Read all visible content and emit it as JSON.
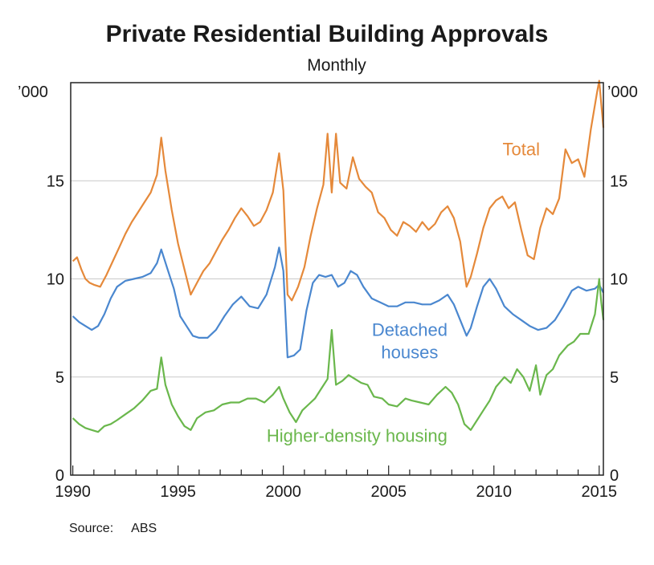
{
  "title": "Private Residential Building Approvals",
  "subtitle": "Monthly",
  "unit_left": "’000",
  "unit_right": "’000",
  "source_label": "Source:",
  "source_value": "ABS",
  "chart_data": {
    "type": "line",
    "title": "Private Residential Building Approvals",
    "subtitle": "Monthly",
    "xlim": [
      1989.9,
      2015.2
    ],
    "ylim": [
      0,
      20
    ],
    "yunit": "’000",
    "x_ticks": [
      1990,
      1995,
      2000,
      2005,
      2010,
      2015
    ],
    "x_tick_labels": [
      "1990",
      "1995",
      "2000",
      "2005",
      "2010",
      "2015"
    ],
    "y_ticks": [
      0,
      5,
      10,
      15
    ],
    "y_tick_labels": [
      "0",
      "5",
      "10",
      "15"
    ],
    "grid": true,
    "series": [
      {
        "name": "Total",
        "color": "#e5893a",
        "label_x": 2011.3,
        "label_y": 16.3,
        "points": [
          [
            1990.0,
            10.9
          ],
          [
            1990.2,
            11.1
          ],
          [
            1990.4,
            10.5
          ],
          [
            1990.6,
            10.0
          ],
          [
            1990.8,
            9.8
          ],
          [
            1991.0,
            9.7
          ],
          [
            1991.3,
            9.6
          ],
          [
            1991.6,
            10.2
          ],
          [
            1991.9,
            10.9
          ],
          [
            1992.2,
            11.6
          ],
          [
            1992.5,
            12.3
          ],
          [
            1992.8,
            12.9
          ],
          [
            1993.1,
            13.4
          ],
          [
            1993.4,
            13.9
          ],
          [
            1993.7,
            14.4
          ],
          [
            1994.0,
            15.3
          ],
          [
            1994.2,
            17.2
          ],
          [
            1994.4,
            15.5
          ],
          [
            1994.7,
            13.5
          ],
          [
            1995.0,
            11.8
          ],
          [
            1995.3,
            10.5
          ],
          [
            1995.6,
            9.2
          ],
          [
            1995.9,
            9.8
          ],
          [
            1996.2,
            10.4
          ],
          [
            1996.5,
            10.8
          ],
          [
            1996.8,
            11.4
          ],
          [
            1997.1,
            12.0
          ],
          [
            1997.4,
            12.5
          ],
          [
            1997.7,
            13.1
          ],
          [
            1998.0,
            13.6
          ],
          [
            1998.3,
            13.2
          ],
          [
            1998.6,
            12.7
          ],
          [
            1998.9,
            12.9
          ],
          [
            1999.2,
            13.5
          ],
          [
            1999.5,
            14.4
          ],
          [
            1999.8,
            16.4
          ],
          [
            2000.0,
            14.5
          ],
          [
            2000.2,
            9.2
          ],
          [
            2000.4,
            8.9
          ],
          [
            2000.7,
            9.6
          ],
          [
            2001.0,
            10.6
          ],
          [
            2001.3,
            12.2
          ],
          [
            2001.6,
            13.6
          ],
          [
            2001.9,
            14.8
          ],
          [
            2002.1,
            17.4
          ],
          [
            2002.3,
            14.4
          ],
          [
            2002.5,
            17.4
          ],
          [
            2002.7,
            14.9
          ],
          [
            2003.0,
            14.6
          ],
          [
            2003.3,
            16.2
          ],
          [
            2003.6,
            15.1
          ],
          [
            2003.9,
            14.7
          ],
          [
            2004.2,
            14.4
          ],
          [
            2004.5,
            13.4
          ],
          [
            2004.8,
            13.1
          ],
          [
            2005.1,
            12.5
          ],
          [
            2005.4,
            12.2
          ],
          [
            2005.7,
            12.9
          ],
          [
            2006.0,
            12.7
          ],
          [
            2006.3,
            12.4
          ],
          [
            2006.6,
            12.9
          ],
          [
            2006.9,
            12.5
          ],
          [
            2007.2,
            12.8
          ],
          [
            2007.5,
            13.4
          ],
          [
            2007.8,
            13.7
          ],
          [
            2008.1,
            13.1
          ],
          [
            2008.4,
            11.9
          ],
          [
            2008.7,
            9.6
          ],
          [
            2008.9,
            10.1
          ],
          [
            2009.2,
            11.3
          ],
          [
            2009.5,
            12.6
          ],
          [
            2009.8,
            13.6
          ],
          [
            2010.1,
            14.0
          ],
          [
            2010.4,
            14.2
          ],
          [
            2010.7,
            13.6
          ],
          [
            2011.0,
            13.9
          ],
          [
            2011.3,
            12.5
          ],
          [
            2011.6,
            11.2
          ],
          [
            2011.9,
            11.0
          ],
          [
            2012.2,
            12.6
          ],
          [
            2012.5,
            13.6
          ],
          [
            2012.8,
            13.3
          ],
          [
            2013.1,
            14.1
          ],
          [
            2013.4,
            16.6
          ],
          [
            2013.7,
            15.9
          ],
          [
            2014.0,
            16.1
          ],
          [
            2014.3,
            15.2
          ],
          [
            2014.6,
            17.6
          ],
          [
            2014.9,
            19.5
          ],
          [
            2015.0,
            20.1
          ],
          [
            2015.1,
            18.9
          ],
          [
            2015.2,
            17.7
          ]
        ]
      },
      {
        "name": "Detached houses",
        "color": "#4a87cf",
        "label_line1": "Detached",
        "label_line2": "houses",
        "label_x": 2006.0,
        "label_y": 7.1,
        "points": [
          [
            1990.0,
            8.1
          ],
          [
            1990.3,
            7.8
          ],
          [
            1990.6,
            7.6
          ],
          [
            1990.9,
            7.4
          ],
          [
            1991.2,
            7.6
          ],
          [
            1991.5,
            8.2
          ],
          [
            1991.8,
            9.0
          ],
          [
            1992.1,
            9.6
          ],
          [
            1992.5,
            9.9
          ],
          [
            1992.9,
            10.0
          ],
          [
            1993.3,
            10.1
          ],
          [
            1993.7,
            10.3
          ],
          [
            1994.0,
            10.8
          ],
          [
            1994.2,
            11.5
          ],
          [
            1994.5,
            10.5
          ],
          [
            1994.8,
            9.5
          ],
          [
            1995.1,
            8.1
          ],
          [
            1995.4,
            7.6
          ],
          [
            1995.7,
            7.1
          ],
          [
            1996.0,
            7.0
          ],
          [
            1996.4,
            7.0
          ],
          [
            1996.8,
            7.4
          ],
          [
            1997.2,
            8.1
          ],
          [
            1997.6,
            8.7
          ],
          [
            1998.0,
            9.1
          ],
          [
            1998.4,
            8.6
          ],
          [
            1998.8,
            8.5
          ],
          [
            1999.2,
            9.2
          ],
          [
            1999.6,
            10.6
          ],
          [
            1999.8,
            11.6
          ],
          [
            2000.0,
            10.4
          ],
          [
            2000.2,
            6.0
          ],
          [
            2000.5,
            6.1
          ],
          [
            2000.8,
            6.4
          ],
          [
            2001.1,
            8.4
          ],
          [
            2001.4,
            9.8
          ],
          [
            2001.7,
            10.2
          ],
          [
            2002.0,
            10.1
          ],
          [
            2002.3,
            10.2
          ],
          [
            2002.6,
            9.6
          ],
          [
            2002.9,
            9.8
          ],
          [
            2003.2,
            10.4
          ],
          [
            2003.5,
            10.2
          ],
          [
            2003.8,
            9.6
          ],
          [
            2004.2,
            9.0
          ],
          [
            2004.6,
            8.8
          ],
          [
            2005.0,
            8.6
          ],
          [
            2005.4,
            8.6
          ],
          [
            2005.8,
            8.8
          ],
          [
            2006.2,
            8.8
          ],
          [
            2006.6,
            8.7
          ],
          [
            2007.0,
            8.7
          ],
          [
            2007.4,
            8.9
          ],
          [
            2007.8,
            9.2
          ],
          [
            2008.1,
            8.7
          ],
          [
            2008.4,
            7.9
          ],
          [
            2008.7,
            7.1
          ],
          [
            2008.9,
            7.5
          ],
          [
            2009.2,
            8.6
          ],
          [
            2009.5,
            9.6
          ],
          [
            2009.8,
            10.0
          ],
          [
            2010.1,
            9.5
          ],
          [
            2010.5,
            8.6
          ],
          [
            2010.9,
            8.2
          ],
          [
            2011.3,
            7.9
          ],
          [
            2011.7,
            7.6
          ],
          [
            2012.1,
            7.4
          ],
          [
            2012.5,
            7.5
          ],
          [
            2012.9,
            7.9
          ],
          [
            2013.3,
            8.6
          ],
          [
            2013.7,
            9.4
          ],
          [
            2014.0,
            9.6
          ],
          [
            2014.4,
            9.4
          ],
          [
            2014.8,
            9.5
          ],
          [
            2015.0,
            9.7
          ],
          [
            2015.2,
            9.3
          ]
        ]
      },
      {
        "name": "Higher-density housing",
        "color": "#6ab74c",
        "label_x": 2003.5,
        "label_y": 1.7,
        "points": [
          [
            1990.0,
            2.9
          ],
          [
            1990.3,
            2.6
          ],
          [
            1990.6,
            2.4
          ],
          [
            1990.9,
            2.3
          ],
          [
            1991.2,
            2.2
          ],
          [
            1991.5,
            2.5
          ],
          [
            1991.8,
            2.6
          ],
          [
            1992.1,
            2.8
          ],
          [
            1992.5,
            3.1
          ],
          [
            1992.9,
            3.4
          ],
          [
            1993.3,
            3.8
          ],
          [
            1993.7,
            4.3
          ],
          [
            1994.0,
            4.4
          ],
          [
            1994.2,
            6.0
          ],
          [
            1994.4,
            4.6
          ],
          [
            1994.7,
            3.6
          ],
          [
            1995.0,
            3.0
          ],
          [
            1995.3,
            2.5
          ],
          [
            1995.6,
            2.3
          ],
          [
            1995.9,
            2.9
          ],
          [
            1996.3,
            3.2
          ],
          [
            1996.7,
            3.3
          ],
          [
            1997.1,
            3.6
          ],
          [
            1997.5,
            3.7
          ],
          [
            1997.9,
            3.7
          ],
          [
            1998.3,
            3.9
          ],
          [
            1998.7,
            3.9
          ],
          [
            1999.1,
            3.7
          ],
          [
            1999.5,
            4.1
          ],
          [
            1999.8,
            4.5
          ],
          [
            2000.0,
            3.9
          ],
          [
            2000.3,
            3.2
          ],
          [
            2000.6,
            2.7
          ],
          [
            2000.9,
            3.3
          ],
          [
            2001.2,
            3.6
          ],
          [
            2001.5,
            3.9
          ],
          [
            2001.8,
            4.4
          ],
          [
            2002.1,
            4.9
          ],
          [
            2002.3,
            7.4
          ],
          [
            2002.5,
            4.6
          ],
          [
            2002.8,
            4.8
          ],
          [
            2003.1,
            5.1
          ],
          [
            2003.4,
            4.9
          ],
          [
            2003.7,
            4.7
          ],
          [
            2004.0,
            4.6
          ],
          [
            2004.3,
            4.0
          ],
          [
            2004.7,
            3.9
          ],
          [
            2005.0,
            3.6
          ],
          [
            2005.4,
            3.5
          ],
          [
            2005.8,
            3.9
          ],
          [
            2006.1,
            3.8
          ],
          [
            2006.5,
            3.7
          ],
          [
            2006.9,
            3.6
          ],
          [
            2007.3,
            4.1
          ],
          [
            2007.7,
            4.5
          ],
          [
            2008.0,
            4.2
          ],
          [
            2008.3,
            3.6
          ],
          [
            2008.6,
            2.6
          ],
          [
            2008.9,
            2.3
          ],
          [
            2009.2,
            2.8
          ],
          [
            2009.5,
            3.3
          ],
          [
            2009.8,
            3.8
          ],
          [
            2010.1,
            4.5
          ],
          [
            2010.5,
            5.0
          ],
          [
            2010.8,
            4.7
          ],
          [
            2011.1,
            5.4
          ],
          [
            2011.4,
            5.0
          ],
          [
            2011.7,
            4.3
          ],
          [
            2012.0,
            5.6
          ],
          [
            2012.2,
            4.1
          ],
          [
            2012.5,
            5.1
          ],
          [
            2012.8,
            5.4
          ],
          [
            2013.1,
            6.1
          ],
          [
            2013.5,
            6.6
          ],
          [
            2013.8,
            6.8
          ],
          [
            2014.1,
            7.2
          ],
          [
            2014.5,
            7.2
          ],
          [
            2014.8,
            8.2
          ],
          [
            2015.0,
            10.0
          ],
          [
            2015.1,
            8.8
          ],
          [
            2015.2,
            7.9
          ]
        ]
      }
    ]
  }
}
